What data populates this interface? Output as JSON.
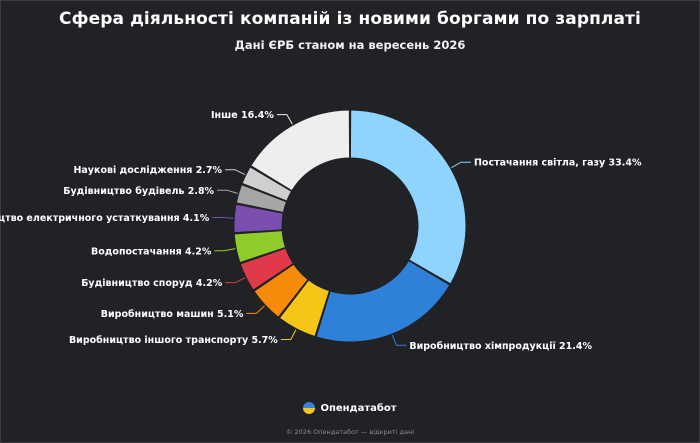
{
  "chart_data": {
    "type": "pie",
    "title": "Сфера діяльності компаній із новими боргами по зарплаті",
    "subtitle": "Дані ЄРБ станом на вересень 2026",
    "slices": [
      {
        "label": "Постачання світла, газу",
        "value": 33.4,
        "color": "#8fd3ff"
      },
      {
        "label": "Виробництво хімпродукції",
        "value": 21.4,
        "color": "#2f80d8"
      },
      {
        "label": "Виробництво іншого транспорту",
        "value": 5.7,
        "color": "#f5c518"
      },
      {
        "label": "Виробництво машин",
        "value": 5.1,
        "color": "#f58a0b"
      },
      {
        "label": "Будівництво споруд",
        "value": 4.2,
        "color": "#e03a4a"
      },
      {
        "label": "Водопостачання",
        "value": 4.2,
        "color": "#8fcc2a"
      },
      {
        "label": "Виробництво електричного устаткування",
        "value": 4.1,
        "color": "#7a4fb0"
      },
      {
        "label": "Будівництво будівель",
        "value": 2.8,
        "color": "#a6a6a6"
      },
      {
        "label": "Наукові дослідження",
        "value": 2.7,
        "color": "#cfcfcf"
      },
      {
        "label": "Інше",
        "value": 16.4,
        "color": "#eeeeee"
      }
    ],
    "legend": "none"
  },
  "brand": "Опендатабот",
  "footer": "© 2026 Опендатабот — відкриті дані"
}
